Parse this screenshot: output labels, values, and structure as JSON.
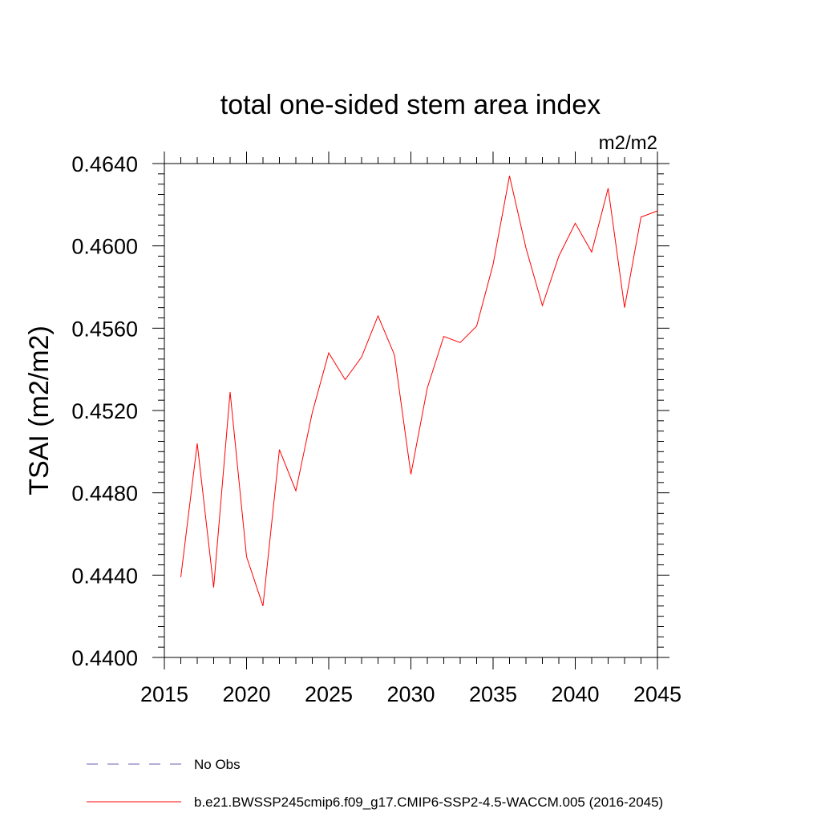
{
  "chart_data": {
    "type": "line",
    "title": "total one-sided stem area index",
    "units_label": "m2/m2",
    "ylabel": "TSAI  (m2/m2)",
    "xlabel": "",
    "xlim": [
      2015,
      2045
    ],
    "ylim": [
      0.44,
      0.464
    ],
    "x_ticks": [
      2015,
      2020,
      2025,
      2030,
      2035,
      2040,
      2045
    ],
    "y_ticks": [
      "0.4400",
      "0.4440",
      "0.4480",
      "0.4520",
      "0.4560",
      "0.4600",
      "0.4640"
    ],
    "x_minor_step": 1,
    "y_minor_step": 0.0005,
    "grid": false,
    "series": [
      {
        "name": "b.e21.BWSSP245cmip6.f09_g17.CMIP6-SSP2-4.5-WACCM.005 (2016-2045)",
        "color": "#ff0000",
        "x": [
          2016,
          2017,
          2018,
          2019,
          2020,
          2021,
          2022,
          2023,
          2024,
          2025,
          2026,
          2027,
          2028,
          2029,
          2030,
          2031,
          2032,
          2033,
          2034,
          2035,
          2036,
          2037,
          2038,
          2039,
          2040,
          2041,
          2042,
          2043,
          2044,
          2045
        ],
        "y": [
          0.4439,
          0.4504,
          0.4434,
          0.4529,
          0.4449,
          0.4425,
          0.4501,
          0.4481,
          0.4519,
          0.4548,
          0.4535,
          0.4546,
          0.4566,
          0.4547,
          0.4489,
          0.4531,
          0.4556,
          0.4553,
          0.4561,
          0.4591,
          0.4634,
          0.4599,
          0.4571,
          0.4595,
          0.4611,
          0.4597,
          0.4628,
          0.457,
          0.4614,
          0.4617
        ]
      }
    ],
    "legend": {
      "placement": "bottom",
      "entries": [
        {
          "label": "No Obs",
          "style": "dashed",
          "color": "#6b5fb5"
        },
        {
          "label": "b.e21.BWSSP245cmip6.f09_g17.CMIP6-SSP2-4.5-WACCM.005 (2016-2045)",
          "style": "solid",
          "color": "#ff0000"
        }
      ]
    }
  }
}
